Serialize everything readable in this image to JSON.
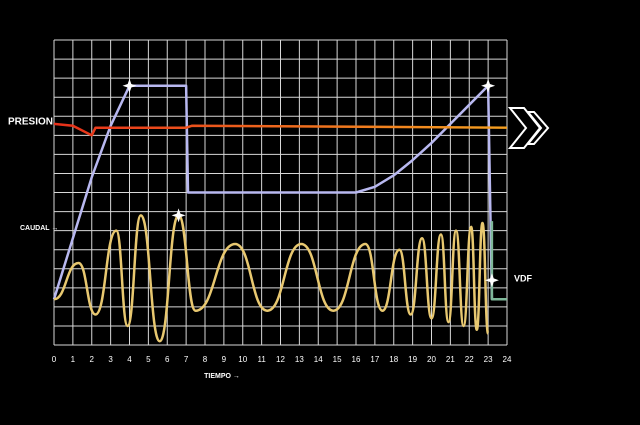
{
  "chart_data": {
    "type": "line",
    "xlabel": "TIEMPO →",
    "xlim": [
      0,
      24
    ],
    "xticks": [
      0,
      1,
      2,
      3,
      4,
      5,
      6,
      7,
      8,
      9,
      10,
      11,
      12,
      13,
      14,
      15,
      16,
      17,
      18,
      19,
      20,
      21,
      22,
      23,
      24
    ],
    "ylim": [
      0,
      16
    ],
    "yticks": [
      0,
      1,
      2,
      3,
      4,
      5,
      6,
      7,
      8,
      9,
      10,
      11,
      12,
      13,
      14,
      15,
      16
    ],
    "ytick_labels": false,
    "grid": true,
    "series": [
      {
        "name": "PRESION",
        "color": "#e8301a",
        "end_color": "#f5a020",
        "smooth": false,
        "x": [
          0,
          1,
          2,
          2.2,
          3,
          7,
          7.3,
          24
        ],
        "values": [
          11.6,
          11.5,
          11.0,
          11.4,
          11.4,
          11.4,
          11.5,
          11.4
        ]
      },
      {
        "name": "CAUDAL →",
        "color": "#e8c870",
        "end_color": "#e8c870",
        "smooth": true,
        "x": [
          0,
          1.3,
          2.2,
          3.3,
          3.9,
          4.6,
          5.6,
          6.6,
          7.5,
          9.6,
          11.3,
          13.1,
          14.8,
          16.5,
          17.4,
          18.3,
          18.9,
          19.5,
          20.0,
          20.5,
          20.9,
          21.3,
          21.7,
          22.1,
          22.4,
          22.7,
          23.0
        ],
        "values": [
          2.4,
          4.3,
          1.6,
          6.0,
          1.0,
          6.8,
          0.2,
          6.8,
          1.8,
          5.3,
          1.8,
          5.3,
          1.8,
          5.3,
          1.8,
          5.0,
          1.6,
          5.6,
          1.4,
          5.8,
          1.2,
          6.0,
          1.0,
          6.2,
          0.8,
          6.4,
          0.6
        ]
      },
      {
        "name": "VDF",
        "color": "#7fb89a",
        "end_color": "#7fb89a",
        "smooth": false,
        "x": [
          23.2,
          23.2,
          24
        ],
        "values": [
          6.5,
          2.4,
          2.4
        ]
      }
    ],
    "profile": {
      "color": "#b8b8f0",
      "x": [
        0,
        1,
        2,
        3,
        4,
        7,
        7.1,
        16,
        17,
        18,
        19,
        20,
        21,
        22,
        23,
        23.2
      ],
      "values": [
        2.4,
        5.6,
        8.8,
        11.5,
        13.6,
        13.6,
        8.0,
        8.0,
        8.3,
        8.9,
        9.7,
        10.6,
        11.6,
        12.6,
        13.6,
        2.4
      ]
    },
    "stars": {
      "x": [
        4,
        6.6,
        23,
        23.2
      ],
      "values": [
        13.6,
        6.8,
        13.6,
        3.4
      ]
    }
  }
}
